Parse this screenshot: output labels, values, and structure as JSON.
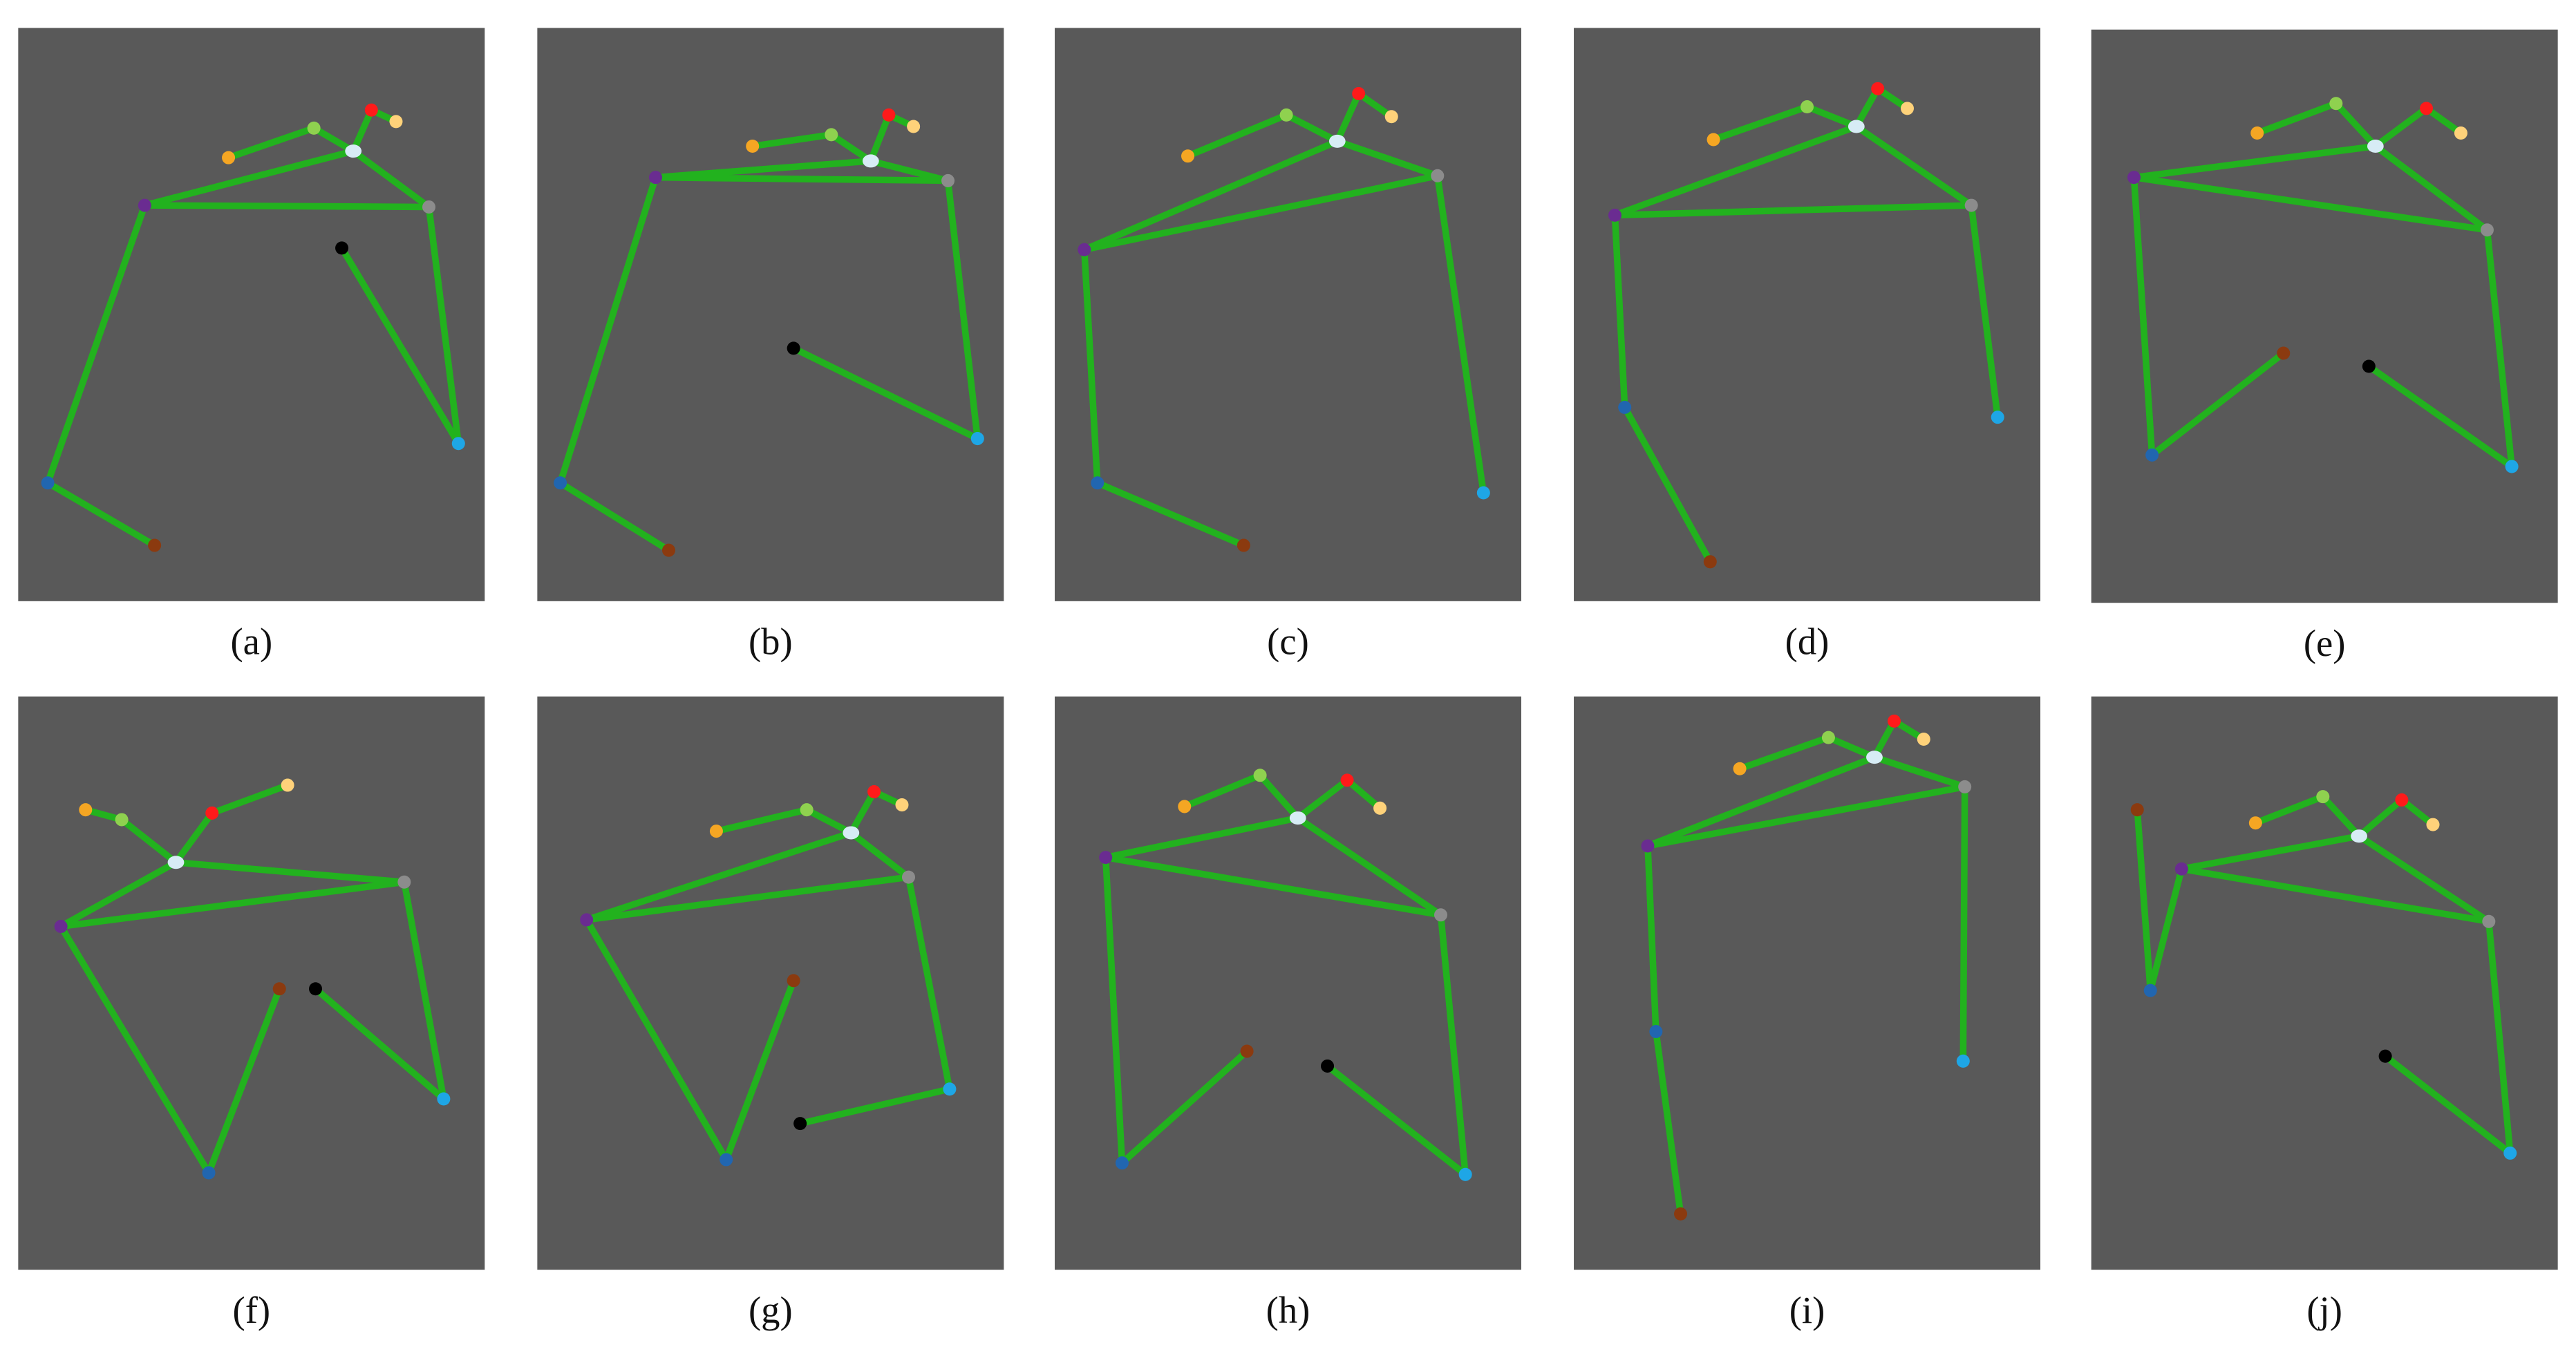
{
  "panels": [
    {
      "caption": "(a)"
    },
    {
      "caption": "(b)"
    },
    {
      "caption": "(c)"
    },
    {
      "caption": "(d)"
    },
    {
      "caption": "(e)"
    },
    {
      "caption": "(f)"
    },
    {
      "caption": "(g)"
    },
    {
      "caption": "(h)"
    },
    {
      "caption": "(i)"
    },
    {
      "caption": "(j)"
    }
  ]
}
